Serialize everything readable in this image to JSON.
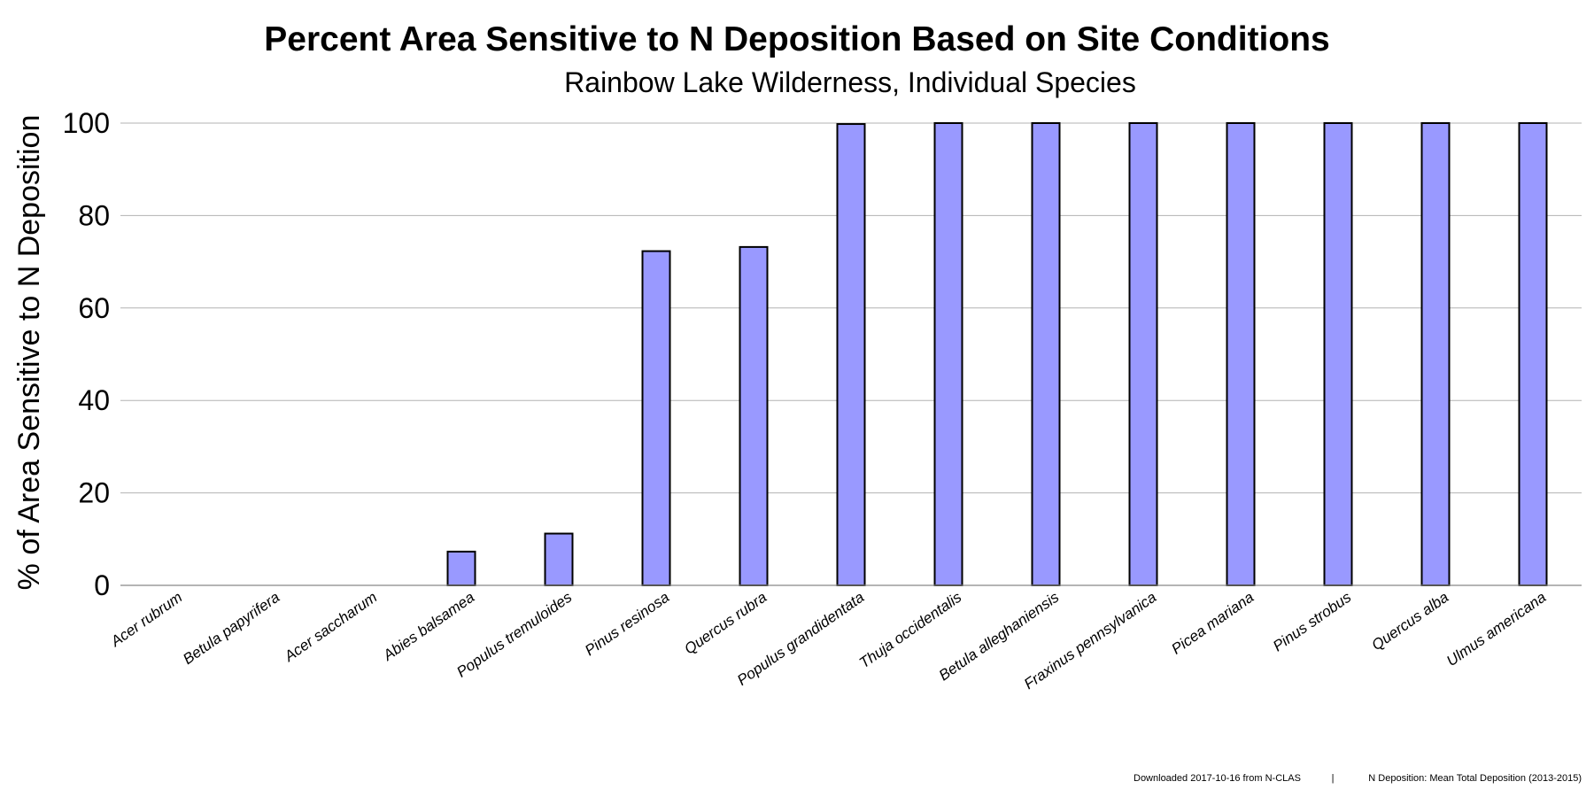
{
  "chart_data": {
    "type": "bar",
    "title": "Percent Area Sensitive to N Deposition Based on Site Conditions",
    "subtitle": "Rainbow Lake Wilderness, Individual Species",
    "xlabel": "",
    "ylabel": "% of Area Sensitive to N Deposition",
    "ylim": [
      0,
      100
    ],
    "yticks": [
      "0",
      "20",
      "40",
      "60",
      "80",
      "100"
    ],
    "grid": true,
    "bar_color": "#9999ff",
    "categories": [
      "Acer rubrum",
      "Betula papyrifera",
      "Acer saccharum",
      "Abies balsamea",
      "Populus tremuloides",
      "Pinus resinosa",
      "Quercus rubra",
      "Populus grandidentata",
      "Thuja occidentalis",
      "Betula alleghaniensis",
      "Fraxinus pennsylvanica",
      "Picea mariana",
      "Pinus strobus",
      "Quercus alba",
      "Ulmus americana"
    ],
    "values": [
      0,
      0,
      0,
      7.3,
      11.2,
      72.3,
      73.2,
      99.8,
      100,
      100,
      100,
      100,
      100,
      100,
      100
    ]
  },
  "footer": {
    "source": "Downloaded 2017-10-16 from N-CLAS",
    "separator": "|",
    "note": "N Deposition: Mean Total Deposition (2013-2015)"
  }
}
